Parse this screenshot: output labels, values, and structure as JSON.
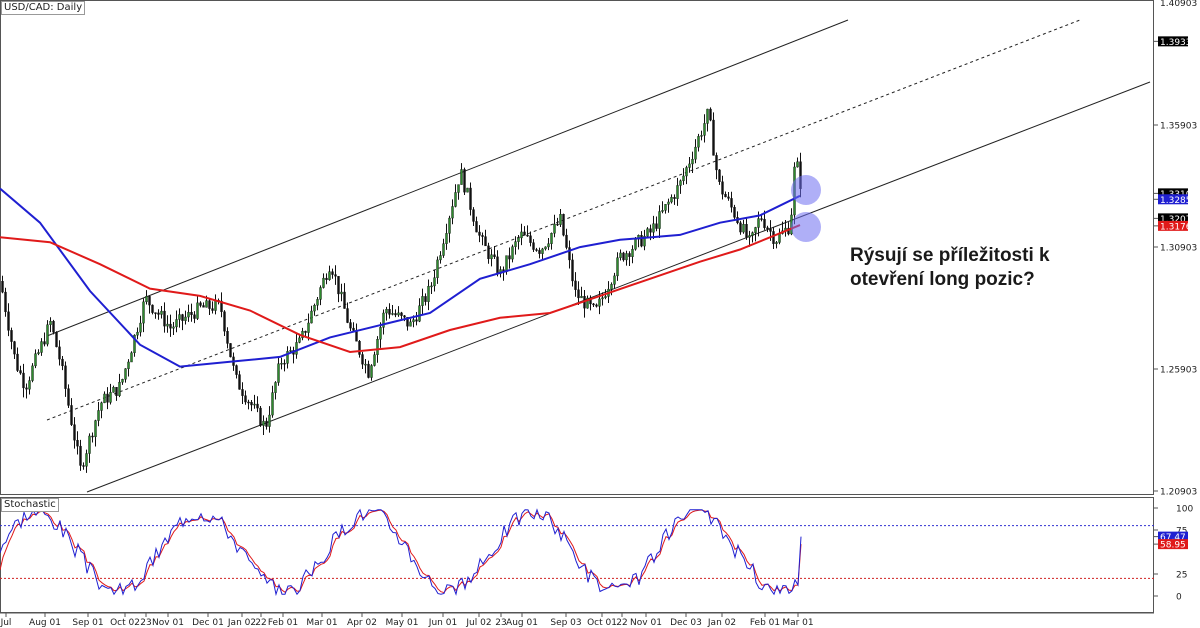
{
  "chart_data": [
    {
      "type": "candlestick",
      "title": "USD/CAD: Daily",
      "y_ticks": [
        "1.40903",
        "1.39331",
        "1.35903",
        "1.33101",
        "1.32858",
        "1.32076",
        "1.31769",
        "1.30903",
        "1.25903",
        "1.20903"
      ],
      "ylim": [
        1.20903,
        1.40903
      ],
      "x_ticks": [
        "Jul",
        "Aug 01",
        "Sep 01",
        "Oct 02",
        "23",
        "Nov 01",
        "Dec 01",
        "Jan 02",
        "22",
        "Feb 01",
        "Mar 01",
        "Apr 02",
        "May 01",
        "Jun 01",
        "Jul 02",
        "23",
        "Aug 01",
        "Sep 03",
        "Oct 01",
        "22",
        "Nov 01",
        "Dec 03",
        "Jan 02",
        "Feb 01",
        "Mar 01"
      ],
      "series": [
        {
          "name": "",
          "kind": "moving-average",
          "color": "#1f1fd1",
          "points": [
            [
              0,
              1.333
            ],
            [
              40,
              1.319
            ],
            [
              90,
              1.291
            ],
            [
              140,
              1.269
            ],
            [
              180,
              1.26
            ],
            [
              230,
              1.262
            ],
            [
              280,
              1.264
            ],
            [
              330,
              1.272
            ],
            [
              380,
              1.277
            ],
            [
              430,
              1.282
            ],
            [
              480,
              1.296
            ],
            [
              530,
              1.302
            ],
            [
              580,
              1.309
            ],
            [
              620,
              1.312
            ],
            [
              680,
              1.314
            ],
            [
              720,
              1.319
            ],
            [
              760,
              1.322
            ],
            [
              800,
              1.33
            ]
          ]
        },
        {
          "name": "",
          "kind": "moving-average",
          "color": "#e01a1a",
          "points": [
            [
              0,
              1.313
            ],
            [
              50,
              1.311
            ],
            [
              100,
              1.302
            ],
            [
              150,
              1.292
            ],
            [
              200,
              1.289
            ],
            [
              250,
              1.283
            ],
            [
              300,
              1.273
            ],
            [
              350,
              1.266
            ],
            [
              400,
              1.268
            ],
            [
              450,
              1.275
            ],
            [
              500,
              1.28
            ],
            [
              550,
              1.282
            ],
            [
              600,
              1.289
            ],
            [
              650,
              1.296
            ],
            [
              700,
              1.303
            ],
            [
              740,
              1.308
            ],
            [
              800,
              1.318
            ]
          ]
        }
      ],
      "price_labels": [
        {
          "value": "1.39331",
          "bg": "#000000",
          "fg": "#ffffff"
        },
        {
          "value": "1.35903",
          "bg": "",
          "fg": "#222222"
        },
        {
          "value": "1.33101",
          "bg": "#000000",
          "fg": "#ffffff"
        },
        {
          "value": "1.32858",
          "bg": "#1f1fd1",
          "fg": "#ffffff"
        },
        {
          "value": "1.32076",
          "bg": "#000000",
          "fg": "#ffffff"
        },
        {
          "value": "1.31769",
          "bg": "#e01a1a",
          "fg": "#ffffff"
        },
        {
          "value": "1.30903",
          "bg": "",
          "fg": "#222222"
        },
        {
          "value": "1.25903",
          "bg": "",
          "fg": "#222222"
        },
        {
          "value": "1.20903",
          "bg": "",
          "fg": "#222222"
        }
      ],
      "channel": "ascending parallel channel with dotted midline",
      "highlights": [
        "blue circle at 1.330 near Mar 01",
        "blue circle at 1.318 near Mar 01"
      ],
      "annotation": "Rýsují se příležitosti k otevření long pozic?"
    },
    {
      "type": "line",
      "title": "Stochastic",
      "y_ticks": [
        "100",
        "75",
        "67.47",
        "58.95",
        "25",
        "0"
      ],
      "ylim": [
        0,
        100
      ],
      "levels": {
        "upper": 80,
        "lower": 20
      },
      "current": {
        "k": "67.47",
        "d": "58.95"
      },
      "colors": {
        "k": "#1f1fd1",
        "d": "#e01a1a"
      }
    }
  ],
  "annotation_text": {
    "line1": "Rýsují se příležitosti k",
    "line2": "otevření long pozic?"
  },
  "panel_titles": {
    "main": "USD/CAD: Daily",
    "stoch": "Stochastic"
  }
}
